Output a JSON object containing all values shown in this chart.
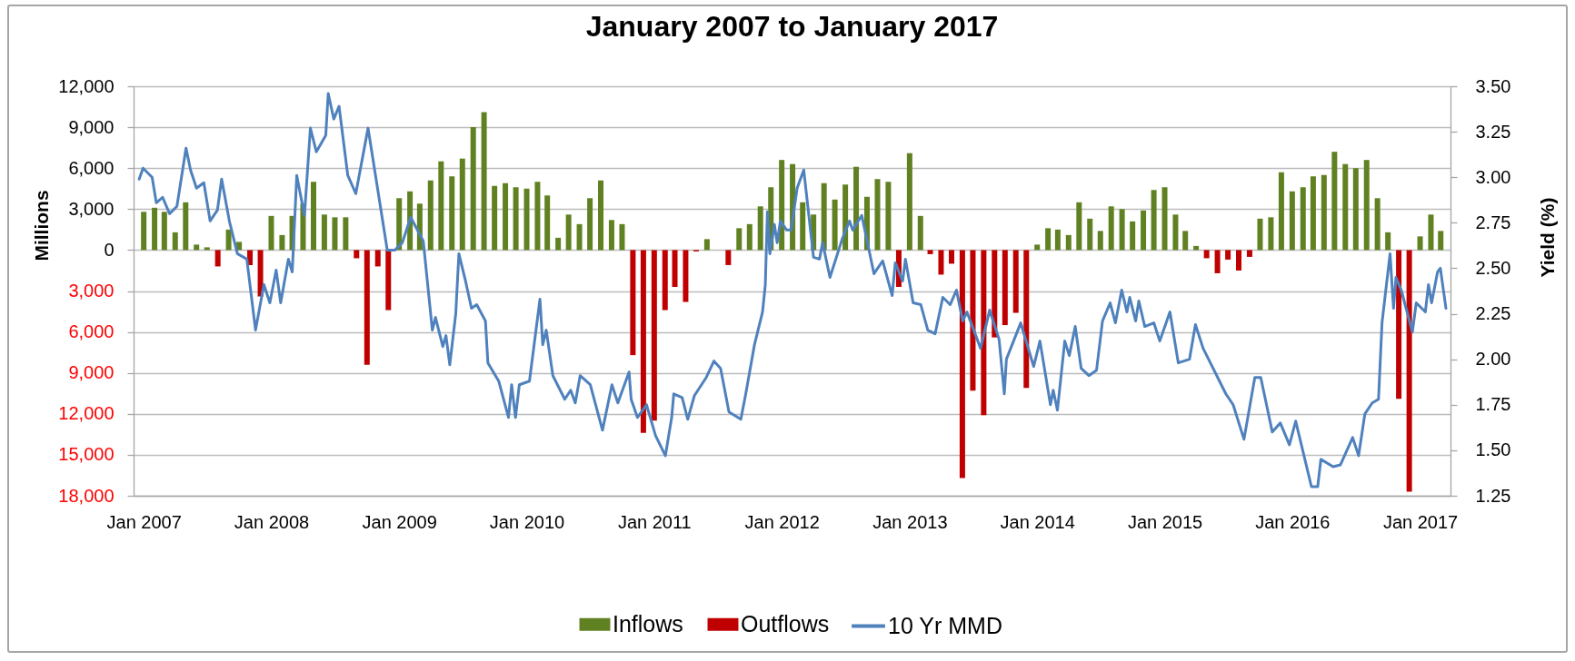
{
  "chart_data": {
    "type": "bar",
    "title": "January 2007 to January 2017",
    "ylabel": "Millions",
    "y2label": "Yield (%)",
    "x": [
      "2007-01",
      "2007-02",
      "2007-03",
      "2007-04",
      "2007-05",
      "2007-06",
      "2007-07",
      "2007-08",
      "2007-09",
      "2007-10",
      "2007-11",
      "2007-12",
      "2008-01",
      "2008-02",
      "2008-03",
      "2008-04",
      "2008-05",
      "2008-06",
      "2008-07",
      "2008-08",
      "2008-09",
      "2008-10",
      "2008-11",
      "2008-12",
      "2009-01",
      "2009-02",
      "2009-03",
      "2009-04",
      "2009-05",
      "2009-06",
      "2009-07",
      "2009-08",
      "2009-09",
      "2009-10",
      "2009-11",
      "2009-12",
      "2010-01",
      "2010-02",
      "2010-03",
      "2010-04",
      "2010-05",
      "2010-06",
      "2010-07",
      "2010-08",
      "2010-09",
      "2010-10",
      "2010-11",
      "2010-12",
      "2011-01",
      "2011-02",
      "2011-03",
      "2011-04",
      "2011-05",
      "2011-06",
      "2011-08",
      "2011-09",
      "2011-10",
      "2011-11",
      "2011-12",
      "2012-01",
      "2012-02",
      "2012-03",
      "2012-04",
      "2012-05",
      "2012-06",
      "2012-07",
      "2012-08",
      "2012-09",
      "2012-10",
      "2012-11",
      "2012-12",
      "2013-01",
      "2013-02",
      "2013-03",
      "2013-04",
      "2013-05",
      "2013-06",
      "2013-07",
      "2013-08",
      "2013-09",
      "2013-10",
      "2013-11",
      "2013-12",
      "2014-01",
      "2014-02",
      "2014-03",
      "2014-04",
      "2014-05",
      "2014-06",
      "2014-07",
      "2014-08",
      "2014-09",
      "2014-10",
      "2014-11",
      "2014-12",
      "2015-01",
      "2015-02",
      "2015-03",
      "2015-04",
      "2015-05",
      "2015-06",
      "2015-07",
      "2015-08",
      "2015-09",
      "2015-10",
      "2015-11",
      "2015-12",
      "2016-01",
      "2016-02",
      "2016-03",
      "2016-04",
      "2016-05",
      "2016-06",
      "2016-07",
      "2016-08",
      "2016-09",
      "2016-10",
      "2016-11",
      "2016-12",
      "2017-01",
      "2017-02",
      "2017-03"
    ],
    "series": [
      {
        "name": "Inflows",
        "color": "#5f8121",
        "values": [
          2800,
          3100,
          2800,
          1300,
          3500,
          400,
          200,
          null,
          1500,
          600,
          null,
          null,
          2500,
          1100,
          2500,
          3400,
          5000,
          2600,
          2400,
          2400,
          null,
          null,
          null,
          null,
          3800,
          4300,
          3400,
          5100,
          6500,
          5400,
          6700,
          9000,
          10100,
          4700,
          4900,
          4600,
          4500,
          5000,
          4000,
          900,
          2600,
          1900,
          3800,
          5100,
          2200,
          1900,
          null,
          null,
          null,
          null,
          null,
          null,
          null,
          800,
          null,
          1600,
          1900,
          3200,
          4600,
          6600,
          6300,
          3500,
          2600,
          4900,
          3700,
          4800,
          6100,
          3900,
          5200,
          5000,
          null,
          7100,
          2500,
          null,
          null,
          null,
          null,
          null,
          null,
          null,
          null,
          null,
          null,
          400,
          1600,
          1500,
          1100,
          3500,
          2300,
          1400,
          3200,
          3000,
          2100,
          2900,
          4400,
          4600,
          2600,
          1400,
          300,
          null,
          null,
          null,
          null,
          null,
          2300,
          2400,
          5700,
          4300,
          4600,
          5400,
          5500,
          7200,
          6300,
          6000,
          6600,
          3800,
          1300,
          null,
          null,
          1000,
          2600,
          1400
        ]
      },
      {
        "name": "Outflows",
        "color": "#c00000",
        "values": [
          null,
          null,
          null,
          null,
          null,
          null,
          null,
          -1200,
          null,
          null,
          -1100,
          -3400,
          null,
          null,
          null,
          null,
          null,
          null,
          null,
          null,
          -600,
          -8400,
          -1200,
          -4400,
          null,
          null,
          null,
          null,
          null,
          null,
          null,
          null,
          null,
          null,
          null,
          null,
          null,
          null,
          null,
          null,
          null,
          null,
          null,
          null,
          null,
          null,
          -7700,
          -13400,
          -12500,
          -4400,
          -2700,
          -3800,
          -100,
          null,
          -1100,
          null,
          null,
          null,
          null,
          null,
          null,
          null,
          null,
          null,
          null,
          null,
          null,
          null,
          null,
          null,
          -2700,
          null,
          null,
          -300,
          -1800,
          -1000,
          -16700,
          -10300,
          -12100,
          -6400,
          -5500,
          -4600,
          -10100,
          null,
          null,
          null,
          null,
          null,
          null,
          null,
          null,
          null,
          null,
          null,
          null,
          null,
          null,
          null,
          null,
          -600,
          -1700,
          -700,
          -1500,
          -500,
          null,
          null,
          null,
          null,
          null,
          null,
          null,
          null,
          null,
          null,
          null,
          null,
          null,
          -10900,
          -17700,
          null,
          null,
          null
        ]
      },
      {
        "name": "10 Yr MMD",
        "type": "line",
        "axis": "y2",
        "color": "#4f81bd",
        "x": [
          "2006-12-19",
          "2006-12-30",
          "2007-01-25",
          "2007-02-06",
          "2007-02-24",
          "2007-03-16",
          "2007-04-06",
          "2007-05-02",
          "2007-05-15",
          "2007-06-01",
          "2007-06-22",
          "2007-07-10",
          "2007-07-31",
          "2007-08-12",
          "2007-09-03",
          "2007-09-26",
          "2007-10-23",
          "2007-11-17",
          "2007-12-11",
          "2007-12-28",
          "2008-01-15",
          "2008-01-28",
          "2008-02-19",
          "2008-03-01",
          "2008-03-14",
          "2008-04-05",
          "2008-04-22",
          "2008-05-09",
          "2008-06-05",
          "2008-06-12",
          "2008-06-28",
          "2008-07-13",
          "2008-08-07",
          "2008-08-30",
          "2008-10-04",
          "2008-11-28",
          "2008-12-20",
          "2009-01-10",
          "2009-02-03",
          "2009-03-11",
          "2009-04-06",
          "2009-04-15",
          "2009-05-06",
          "2009-05-15",
          "2009-05-26",
          "2009-06-12",
          "2009-06-21",
          "2009-07-10",
          "2009-07-27",
          "2009-08-11",
          "2009-09-05",
          "2009-09-12",
          "2009-10-13",
          "2009-11-10",
          "2009-11-19",
          "2009-11-30",
          "2009-12-11",
          "2010-01-09",
          "2010-02-08",
          "2010-02-16",
          "2010-02-26",
          "2010-03-17",
          "2010-04-20",
          "2010-05-07",
          "2010-05-20",
          "2010-06-03",
          "2010-07-02",
          "2010-08-06",
          "2010-09-02",
          "2010-09-19",
          "2010-10-21",
          "2010-10-27",
          "2010-11-14",
          "2010-12-10",
          "2011-01-05",
          "2011-02-02",
          "2011-02-20",
          "2011-02-26",
          "2011-03-22",
          "2011-04-07",
          "2011-04-26",
          "2011-05-30",
          "2011-06-21",
          "2011-07-10",
          "2011-08-03",
          "2011-09-06",
          "2011-09-20",
          "2011-10-15",
          "2011-11-07",
          "2011-11-15",
          "2011-11-21",
          "2011-11-28",
          "2011-12-11",
          "2011-12-19",
          "2011-12-28",
          "2012-01-15",
          "2012-01-28",
          "2012-02-14",
          "2012-03-04",
          "2012-04-01",
          "2012-04-18",
          "2012-04-27",
          "2012-05-18",
          "2012-06-22",
          "2012-07-13",
          "2012-07-22",
          "2012-08-17",
          "2012-09-21",
          "2012-10-16",
          "2012-11-12",
          "2012-11-21",
          "2012-12-12",
          "2012-12-20",
          "2013-01-11",
          "2013-02-02",
          "2013-02-22",
          "2013-03-15",
          "2013-04-06",
          "2013-04-27",
          "2013-05-15",
          "2013-06-02",
          "2013-06-14",
          "2013-07-23",
          "2013-08-18",
          "2013-09-14",
          "2013-09-29",
          "2013-10-05",
          "2013-11-15",
          "2013-12-22",
          "2014-01-09",
          "2014-02-08",
          "2014-02-16",
          "2014-02-28",
          "2014-03-21",
          "2014-04-03",
          "2014-04-20",
          "2014-05-07",
          "2014-05-29",
          "2014-06-20",
          "2014-07-07",
          "2014-07-29",
          "2014-08-13",
          "2014-08-31",
          "2014-09-15",
          "2014-09-23",
          "2014-10-10",
          "2014-10-19",
          "2014-11-05",
          "2014-12-01",
          "2014-12-18",
          "2015-01-16",
          "2015-02-09",
          "2015-03-13",
          "2015-03-30",
          "2015-04-21",
          "2015-05-17",
          "2015-06-25",
          "2015-07-16",
          "2015-08-16",
          "2015-09-16",
          "2015-10-03",
          "2015-11-05",
          "2015-11-28",
          "2015-12-24",
          "2016-01-11",
          "2016-02-10",
          "2016-02-25",
          "2016-03-14",
          "2016-03-23",
          "2016-04-27",
          "2016-05-18",
          "2016-06-22",
          "2016-07-09",
          "2016-07-27",
          "2016-08-17",
          "2016-09-04",
          "2016-09-14",
          "2016-10-07",
          "2016-10-17",
          "2016-10-24",
          "2016-11-08",
          "2016-12-10",
          "2016-12-21",
          "2017-01-16",
          "2017-01-25",
          "2017-02-03",
          "2017-02-20",
          "2017-02-28",
          "2017-03-16"
        ],
        "values": [
          2.99,
          3.05,
          3.0,
          2.86,
          2.89,
          2.8,
          2.84,
          3.16,
          3.04,
          2.94,
          2.97,
          2.76,
          2.82,
          2.99,
          2.76,
          2.58,
          2.55,
          2.16,
          2.41,
          2.31,
          2.49,
          2.31,
          2.55,
          2.48,
          3.01,
          2.79,
          3.27,
          3.14,
          3.23,
          3.46,
          3.32,
          3.39,
          3.01,
          2.91,
          3.27,
          2.6,
          2.6,
          2.64,
          2.78,
          2.65,
          2.16,
          2.23,
          2.07,
          2.13,
          1.97,
          2.25,
          2.58,
          2.43,
          2.28,
          2.3,
          2.21,
          1.98,
          1.88,
          1.68,
          1.86,
          1.68,
          1.86,
          1.88,
          2.33,
          2.08,
          2.16,
          1.91,
          1.78,
          1.83,
          1.76,
          1.91,
          1.86,
          1.61,
          1.86,
          1.76,
          1.93,
          1.78,
          1.68,
          1.75,
          1.58,
          1.47,
          1.68,
          1.81,
          1.79,
          1.67,
          1.8,
          1.9,
          1.99,
          1.95,
          1.71,
          1.67,
          1.81,
          2.08,
          2.26,
          2.41,
          2.81,
          2.58,
          2.74,
          2.64,
          2.76,
          2.71,
          2.71,
          2.94,
          3.04,
          2.56,
          2.55,
          2.64,
          2.45,
          2.66,
          2.76,
          2.71,
          2.79,
          2.47,
          2.54,
          2.35,
          2.53,
          2.43,
          2.55,
          2.31,
          2.3,
          2.16,
          2.14,
          2.34,
          2.3,
          2.38,
          2.21,
          2.26,
          2.06,
          2.27,
          2.11,
          1.81,
          2.0,
          2.2,
          1.96,
          2.1,
          1.75,
          1.83,
          1.72,
          2.1,
          2.02,
          2.18,
          1.95,
          1.91,
          1.94,
          2.21,
          2.31,
          2.2,
          2.38,
          2.26,
          2.34,
          2.21,
          2.32,
          2.18,
          2.2,
          2.1,
          2.26,
          1.98,
          2.0,
          2.19,
          2.06,
          1.96,
          1.81,
          1.75,
          1.56,
          1.9,
          1.9,
          1.6,
          1.65,
          1.53,
          1.66,
          1.42,
          1.3,
          1.3,
          1.45,
          1.41,
          1.42,
          1.57,
          1.47,
          1.7,
          1.76,
          1.78,
          2.2,
          2.58,
          2.28,
          2.45,
          2.38,
          2.15,
          2.31,
          2.26,
          2.41,
          2.31,
          2.48,
          2.5,
          2.28
        ]
      }
    ],
    "xlim": [
      "2006-12-16",
      "2017-03-16"
    ],
    "xticks": [
      {
        "value": "2007-01",
        "label": "Jan 2007"
      },
      {
        "value": "2008-01",
        "label": "Jan 2008"
      },
      {
        "value": "2009-01",
        "label": "Jan 2009"
      },
      {
        "value": "2010-01",
        "label": "Jan 2010"
      },
      {
        "value": "2011-01",
        "label": "Jan 2011"
      },
      {
        "value": "2012-01",
        "label": "Jan 2012"
      },
      {
        "value": "2013-01",
        "label": "Jan 2013"
      },
      {
        "value": "2014-01",
        "label": "Jan 2014"
      },
      {
        "value": "2015-01",
        "label": "Jan 2015"
      },
      {
        "value": "2016-01",
        "label": "Jan 2016"
      },
      {
        "value": "2017-01",
        "label": "Jan 2017"
      }
    ],
    "ylim": [
      -18000,
      12000
    ],
    "yticks": [
      {
        "value": -18000,
        "label": "18,000"
      },
      {
        "value": -15000,
        "label": "15,000"
      },
      {
        "value": -12000,
        "label": "12,000"
      },
      {
        "value": -9000,
        "label": "9,000"
      },
      {
        "value": -6000,
        "label": "6,000"
      },
      {
        "value": -3000,
        "label": "3,000"
      },
      0,
      {
        "value": 3000,
        "label": "3,000"
      },
      {
        "value": 6000,
        "label": "6,000"
      },
      {
        "value": 9000,
        "label": "9,000"
      },
      {
        "value": 12000,
        "label": "12,000"
      }
    ],
    "y2lim": [
      1.25,
      3.5
    ],
    "y2ticks": [
      1.25,
      {
        "value": 1.5,
        "label": "1.50"
      },
      1.75,
      {
        "value": 2,
        "label": "2.00"
      },
      2.25,
      {
        "value": 2.5,
        "label": "2.50"
      },
      2.75,
      {
        "value": 3,
        "label": "3.00"
      },
      3.25,
      {
        "value": 3.5,
        "label": "3.50"
      }
    ],
    "grid": "y",
    "legend": "bottom",
    "line_style": "solid"
  }
}
